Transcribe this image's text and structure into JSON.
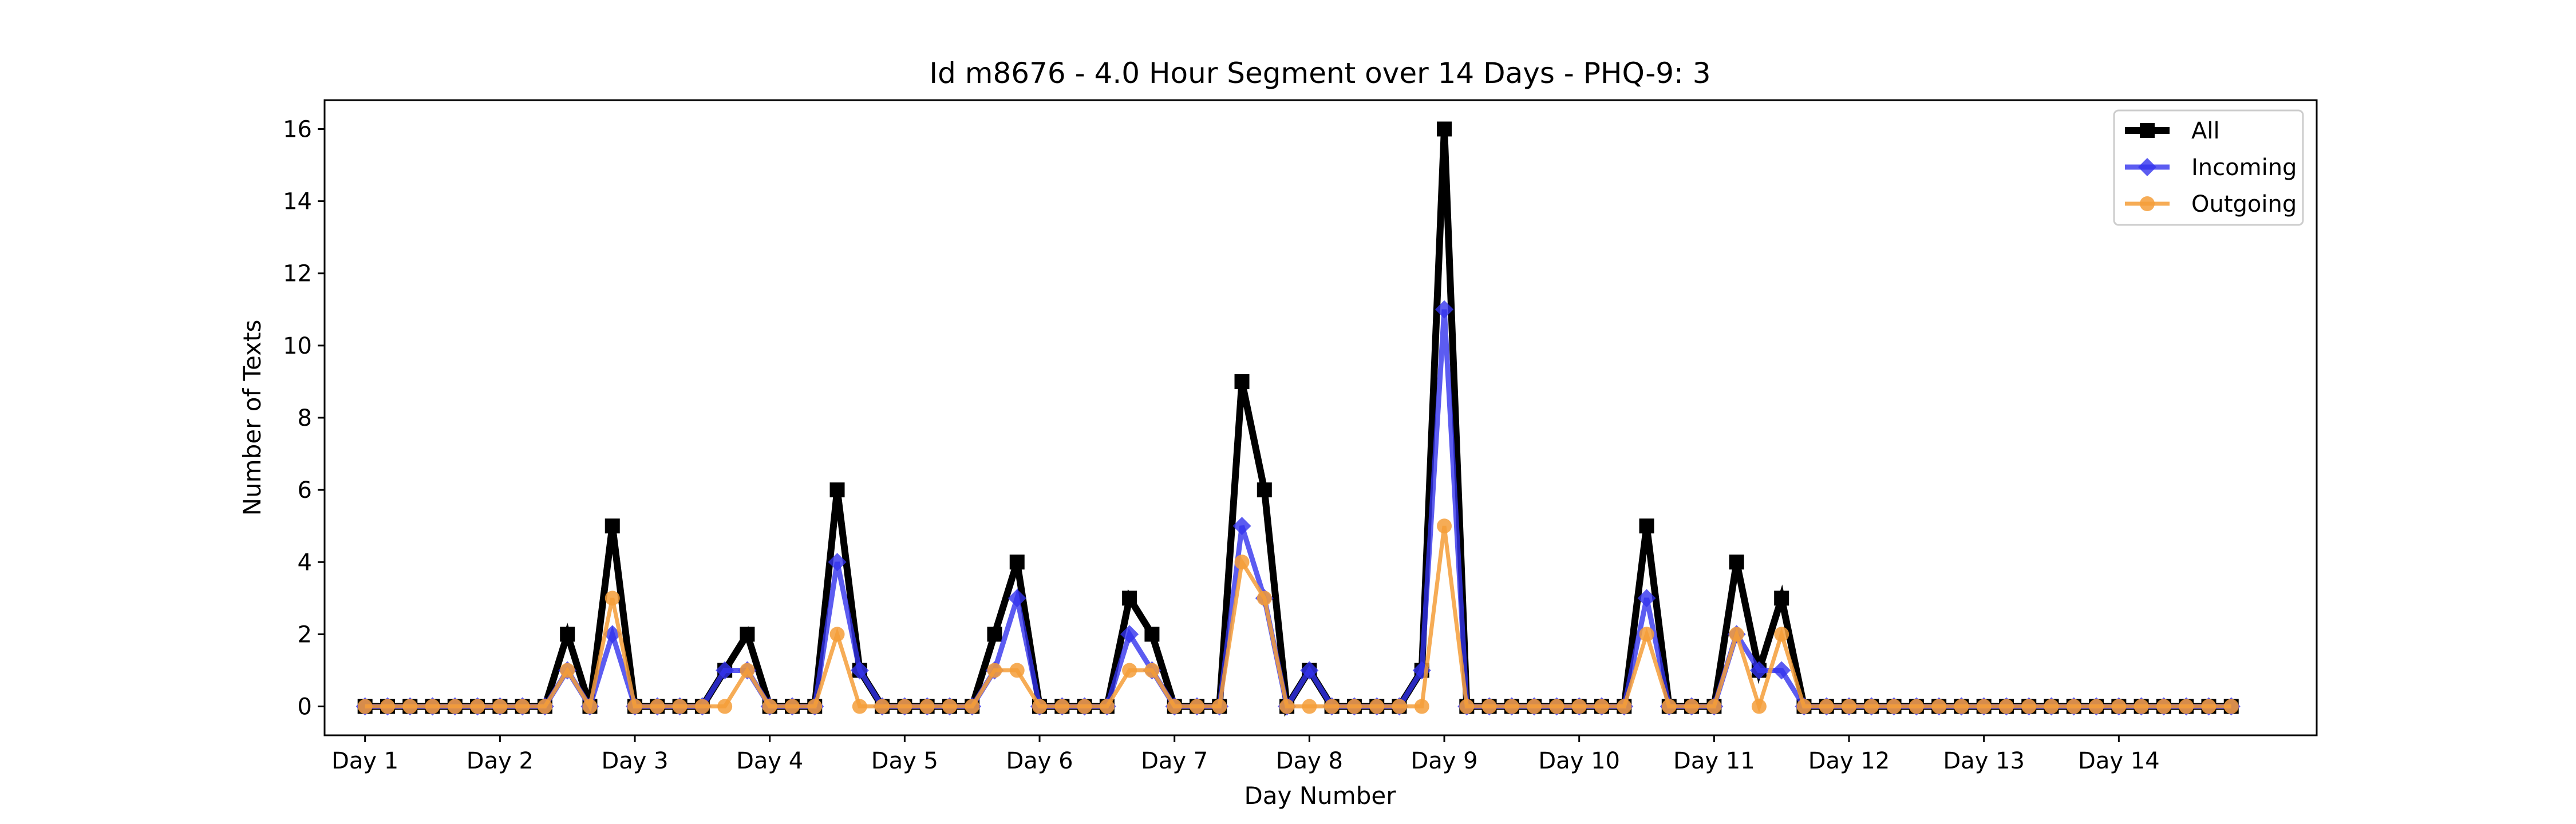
{
  "chart_data": {
    "type": "line",
    "title": "Id m8676 - 4.0 Hour Segment over 14 Days - PHQ-9: 3",
    "xlabel": "Day Number",
    "ylabel": "Number of Texts",
    "ylim": [
      -0.8,
      16.8
    ],
    "yticks": [
      0,
      2,
      4,
      6,
      8,
      10,
      12,
      14,
      16
    ],
    "xlim": [
      -1.8,
      86.8
    ],
    "xtick_positions": [
      0,
      6,
      12,
      18,
      24,
      30,
      36,
      42,
      48,
      54,
      60,
      66,
      72,
      78
    ],
    "xtick_labels": [
      "Day 1",
      "Day 2",
      "Day 3",
      "Day 4",
      "Day 5",
      "Day 6",
      "Day 7",
      "Day 8",
      "Day 9",
      "Day 10",
      "Day 11",
      "Day 12",
      "Day 13",
      "Day 14"
    ],
    "x": [
      0,
      1,
      2,
      3,
      4,
      5,
      6,
      7,
      8,
      9,
      10,
      11,
      12,
      13,
      14,
      15,
      16,
      17,
      18,
      19,
      20,
      21,
      22,
      23,
      24,
      25,
      26,
      27,
      28,
      29,
      30,
      31,
      32,
      33,
      34,
      35,
      36,
      37,
      38,
      39,
      40,
      41,
      42,
      43,
      44,
      45,
      46,
      47,
      48,
      49,
      50,
      51,
      52,
      53,
      54,
      55,
      56,
      57,
      58,
      59,
      60,
      61,
      62,
      63,
      64,
      65,
      66,
      67,
      68,
      69,
      70,
      71,
      72,
      73,
      74,
      75,
      76,
      77,
      78,
      79,
      80,
      81,
      82,
      83
    ],
    "series": [
      {
        "name": "All",
        "color": "#000000",
        "marker": "square",
        "values": [
          0,
          0,
          0,
          0,
          0,
          0,
          0,
          0,
          0,
          2,
          0,
          5,
          0,
          0,
          0,
          0,
          1,
          2,
          0,
          0,
          0,
          6,
          1,
          0,
          0,
          0,
          0,
          0,
          2,
          4,
          0,
          0,
          0,
          0,
          3,
          2,
          0,
          0,
          0,
          9,
          6,
          0,
          1,
          0,
          0,
          0,
          0,
          1,
          16,
          0,
          0,
          0,
          0,
          0,
          0,
          0,
          0,
          5,
          0,
          0,
          0,
          4,
          1,
          3,
          0,
          0,
          0,
          0,
          0,
          0,
          0,
          0,
          0,
          0,
          0,
          0,
          0,
          0,
          0,
          0,
          0,
          0,
          0,
          0
        ]
      },
      {
        "name": "Incoming",
        "color": "#3333ee",
        "marker": "diamond",
        "values": [
          0,
          0,
          0,
          0,
          0,
          0,
          0,
          0,
          0,
          1,
          0,
          2,
          0,
          0,
          0,
          0,
          1,
          1,
          0,
          0,
          0,
          4,
          1,
          0,
          0,
          0,
          0,
          0,
          1,
          3,
          0,
          0,
          0,
          0,
          2,
          1,
          0,
          0,
          0,
          5,
          3,
          0,
          1,
          0,
          0,
          0,
          0,
          1,
          11,
          0,
          0,
          0,
          0,
          0,
          0,
          0,
          0,
          3,
          0,
          0,
          0,
          2,
          1,
          1,
          0,
          0,
          0,
          0,
          0,
          0,
          0,
          0,
          0,
          0,
          0,
          0,
          0,
          0,
          0,
          0,
          0,
          0,
          0,
          0
        ]
      },
      {
        "name": "Outgoing",
        "color": "#f59d38",
        "marker": "circle",
        "values": [
          0,
          0,
          0,
          0,
          0,
          0,
          0,
          0,
          0,
          1,
          0,
          3,
          0,
          0,
          0,
          0,
          0,
          1,
          0,
          0,
          0,
          2,
          0,
          0,
          0,
          0,
          0,
          0,
          1,
          1,
          0,
          0,
          0,
          0,
          1,
          1,
          0,
          0,
          0,
          4,
          3,
          0,
          0,
          0,
          0,
          0,
          0,
          0,
          5,
          0,
          0,
          0,
          0,
          0,
          0,
          0,
          0,
          2,
          0,
          0,
          0,
          2,
          0,
          2,
          0,
          0,
          0,
          0,
          0,
          0,
          0,
          0,
          0,
          0,
          0,
          0,
          0,
          0,
          0,
          0,
          0,
          0,
          0,
          0
        ]
      }
    ],
    "legend": "top-right",
    "grid": false
  }
}
